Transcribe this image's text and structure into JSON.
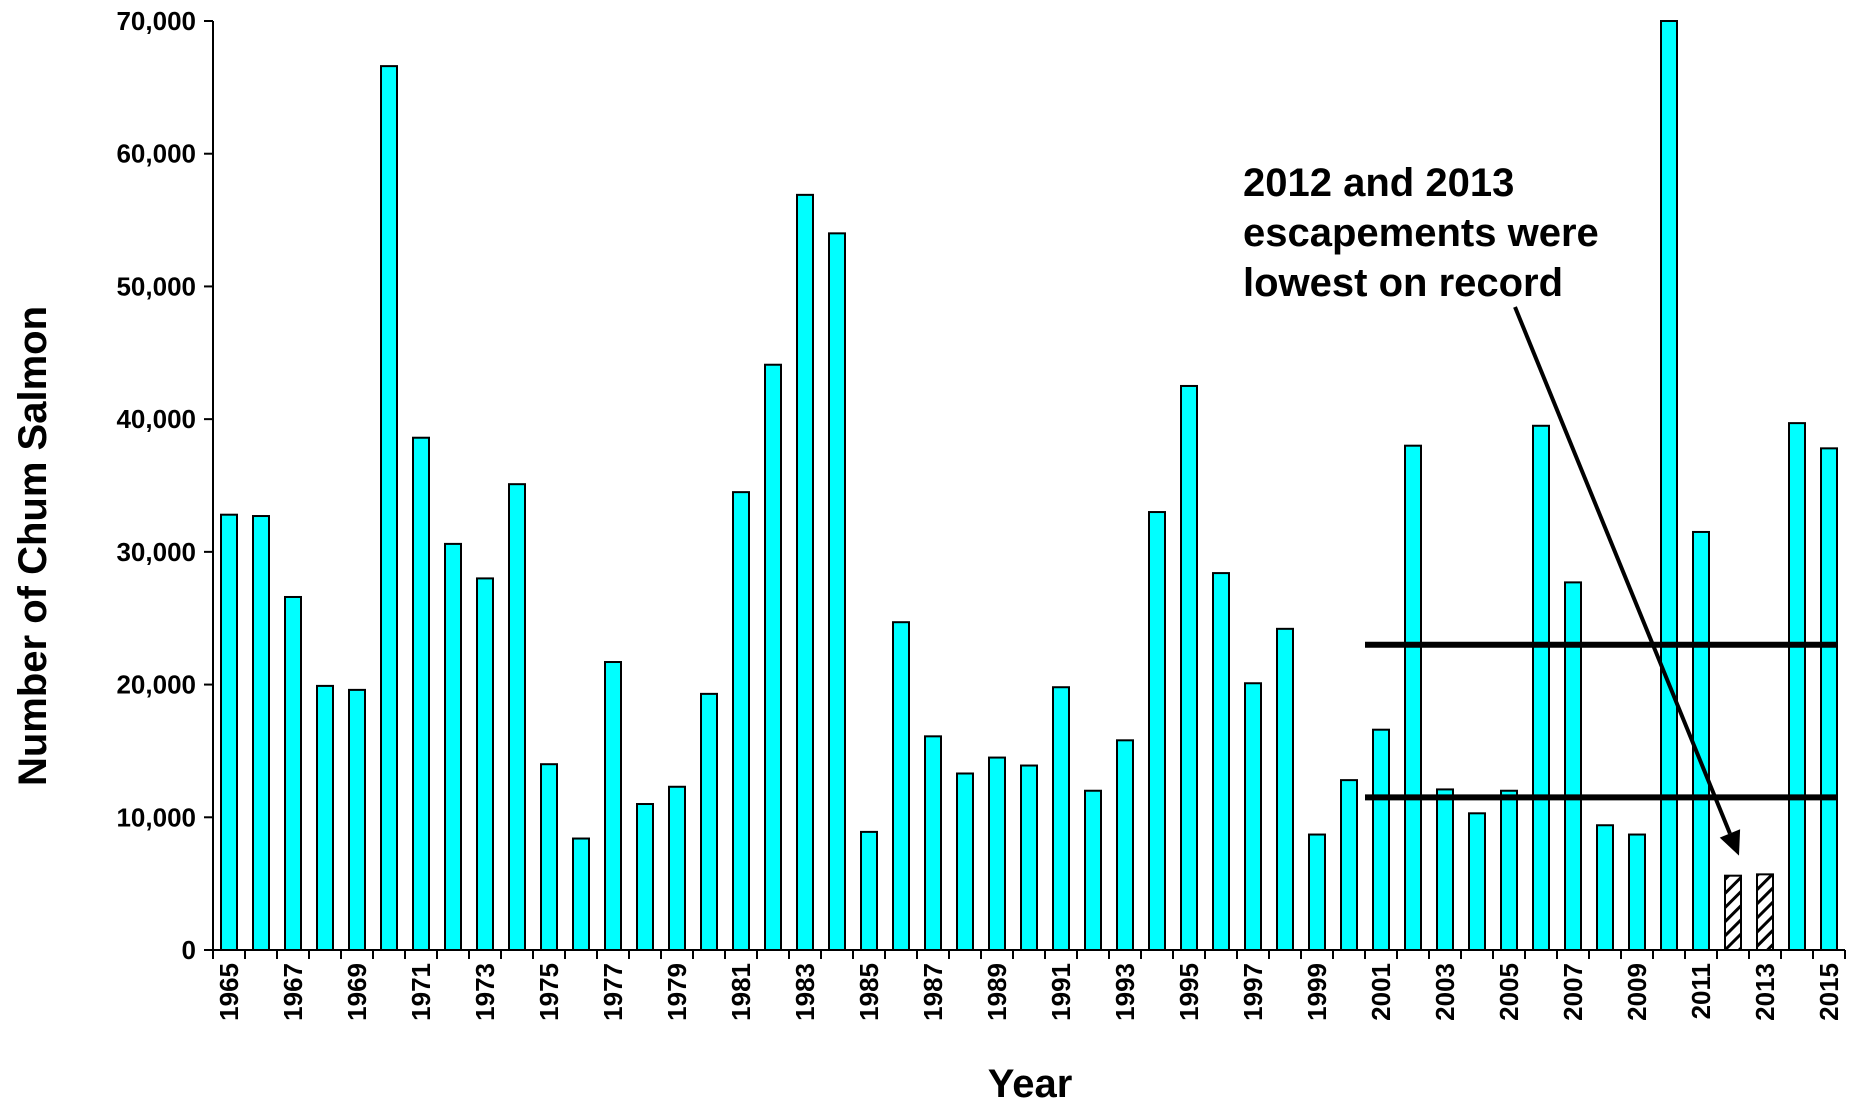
{
  "chart_data": {
    "type": "bar",
    "title": "",
    "xlabel": "Year",
    "ylabel": "Number of Chum Salmon",
    "ylim": [
      0,
      70000
    ],
    "yticks": [
      0,
      10000,
      20000,
      30000,
      40000,
      50000,
      60000,
      70000
    ],
    "ytick_labels": [
      "0",
      "10,000",
      "20,000",
      "30,000",
      "40,000",
      "50,000",
      "60,000",
      "70,000"
    ],
    "grid": false,
    "legend": "none",
    "bar_color": "#00FFFF",
    "highlight_fill": "hatched black/white",
    "categories": [
      1965,
      1966,
      1967,
      1968,
      1969,
      1970,
      1971,
      1972,
      1973,
      1974,
      1975,
      1976,
      1977,
      1978,
      1979,
      1980,
      1981,
      1982,
      1983,
      1984,
      1985,
      1986,
      1987,
      1988,
      1989,
      1990,
      1991,
      1992,
      1993,
      1994,
      1995,
      1996,
      1997,
      1998,
      1999,
      2000,
      2001,
      2002,
      2003,
      2004,
      2005,
      2006,
      2007,
      2008,
      2009,
      2010,
      2011,
      2012,
      2013,
      2014,
      2015
    ],
    "x_tick_labels": [
      "1965",
      "1967",
      "1969",
      "1971",
      "1973",
      "1975",
      "1977",
      "1979",
      "1981",
      "1983",
      "1985",
      "1987",
      "1989",
      "1991",
      "1993",
      "1995",
      "1997",
      "1999",
      "2001",
      "2003",
      "2005",
      "2007",
      "2009",
      "2011",
      "2013",
      "2015"
    ],
    "values": [
      32800,
      32700,
      26600,
      19900,
      19600,
      66600,
      38600,
      30600,
      28000,
      35100,
      14000,
      8400,
      21700,
      11000,
      12300,
      19300,
      34500,
      44100,
      56900,
      54000,
      8900,
      24700,
      16100,
      13300,
      14500,
      13900,
      19800,
      12000,
      15800,
      33000,
      42500,
      28400,
      20100,
      24200,
      8700,
      12800,
      16600,
      38000,
      12100,
      10300,
      12000,
      39500,
      27700,
      9400,
      8700,
      70000,
      31500,
      5600,
      5700,
      39700,
      37800
    ],
    "highlighted_categories": [
      2012,
      2013
    ],
    "reference_lines": [
      {
        "value": 23000,
        "x_start": 2001,
        "x_end": 2015
      },
      {
        "value": 11500,
        "x_start": 2001,
        "x_end": 2015
      }
    ],
    "annotation": {
      "lines": [
        "2012 and 2013",
        "escapements were",
        "lowest on record"
      ],
      "points_to": 2012
    }
  }
}
